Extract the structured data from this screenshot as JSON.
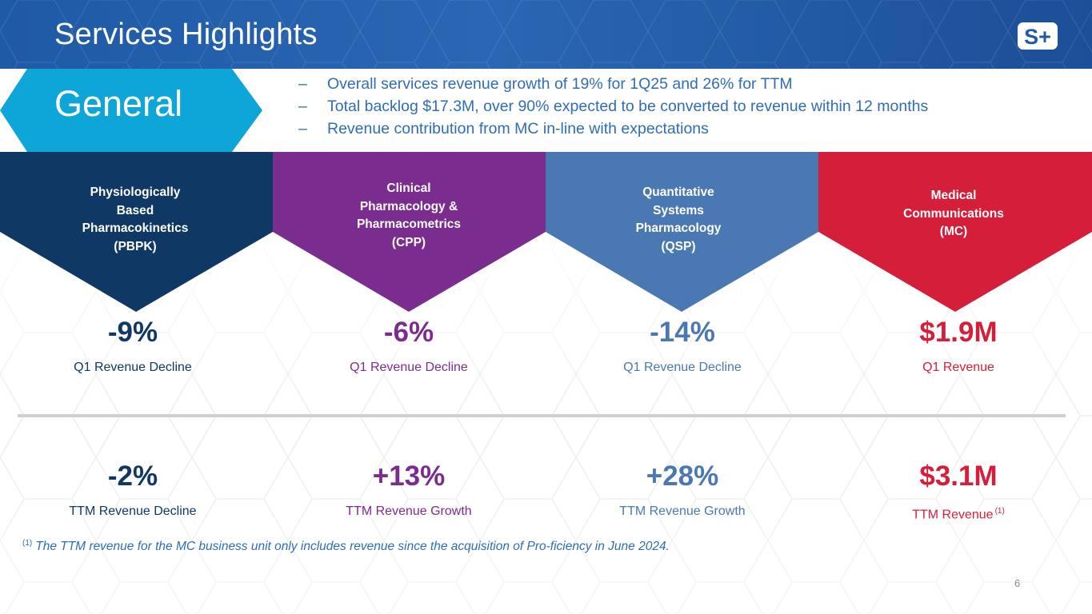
{
  "header": {
    "title": "Services Highlights",
    "logo_text": "S+"
  },
  "general": {
    "label": "General",
    "bullet_marker": "–",
    "bullets": [
      "Overall services revenue growth of 19% for 1Q25 and 26% for TTM",
      "Total backlog $17.3M, over 90% expected to be converted to revenue within 12 months",
      "Revenue contribution from MC in-line with expectations"
    ]
  },
  "colors": {
    "header_blue": "#1f5aa6",
    "general_cyan": "#0ea5d9",
    "pbpk": "#0f3864",
    "cpp": "#7b2c8f",
    "qsp": "#4a78b3",
    "mc": "#d51f3a",
    "text_blue": "#2f6db6"
  },
  "segments": [
    {
      "label_lines": [
        "Physiologically",
        "Based",
        "Pharmacokinetics",
        "(PBPK)"
      ],
      "color": "#0f3864",
      "q1_value": "-9%",
      "q1_desc": "Q1 Revenue Decline",
      "ttm_value": "-2%",
      "ttm_desc": "TTM Revenue Decline",
      "ttm_sup": ""
    },
    {
      "label_lines": [
        "Clinical",
        "Pharmacology &",
        "Pharmacometrics",
        "(CPP)"
      ],
      "color": "#7b2c8f",
      "q1_value": "-6%",
      "q1_desc": "Q1 Revenue Decline",
      "ttm_value": "+13%",
      "ttm_desc": "TTM Revenue Growth",
      "ttm_sup": ""
    },
    {
      "label_lines": [
        "Quantitative",
        "Systems",
        "Pharmacology",
        "(QSP)"
      ],
      "color": "#4a78b3",
      "q1_value": "-14%",
      "q1_desc": "Q1 Revenue Decline",
      "ttm_value": "+28%",
      "ttm_desc": "TTM Revenue Growth",
      "ttm_sup": ""
    },
    {
      "label_lines": [
        "Medical",
        "Communications",
        "(MC)"
      ],
      "color": "#d51f3a",
      "q1_value": "$1.9M",
      "q1_desc": "Q1 Revenue",
      "ttm_value": "$3.1M",
      "ttm_desc": "TTM Revenue",
      "ttm_sup": "(1)"
    }
  ],
  "footnote": {
    "marker": "(1)",
    "text": "The TTM revenue for the MC business unit only includes revenue since the acquisition of Pro-ficiency in June 2024."
  },
  "page_number": "6"
}
